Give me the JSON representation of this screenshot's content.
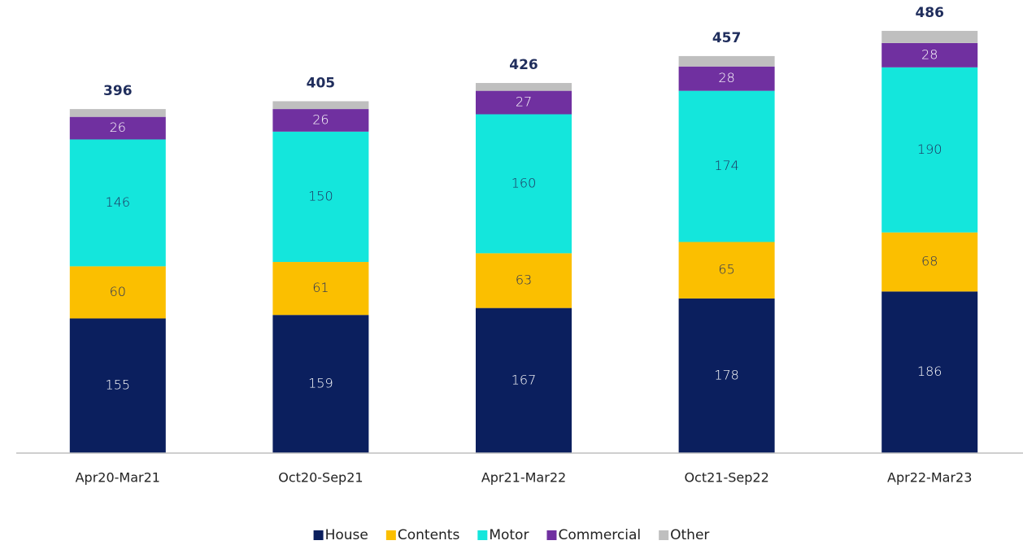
{
  "chart_data": {
    "type": "stacked_bar",
    "categories": [
      "Apr20-Mar21",
      "Oct20-Sep21",
      "Apr21-Mar22",
      "Oct21-Sep22",
      "Apr22-Mar23"
    ],
    "series": [
      {
        "name": "House",
        "color": "#0b1f5e",
        "label_color": "#ffffff",
        "values": [
          155,
          159,
          167,
          178,
          186
        ]
      },
      {
        "name": "Contents",
        "color": "#fbbf00",
        "label_color": "#1f2d5c",
        "values": [
          60,
          61,
          63,
          65,
          68
        ]
      },
      {
        "name": "Motor",
        "color": "#14e6dc",
        "label_color": "#1f2d5c",
        "values": [
          146,
          150,
          160,
          174,
          190
        ]
      },
      {
        "name": "Commercial",
        "color": "#7030a0",
        "label_color": "#ffffff",
        "values": [
          26,
          26,
          27,
          28,
          28
        ]
      },
      {
        "name": "Other",
        "color": "#bfbfbf",
        "values": [
          9,
          9,
          9,
          12,
          14
        ]
      }
    ],
    "totals": [
      396,
      405,
      426,
      457,
      486
    ],
    "ylim": [
      0,
      500
    ],
    "legend": "bottom"
  }
}
